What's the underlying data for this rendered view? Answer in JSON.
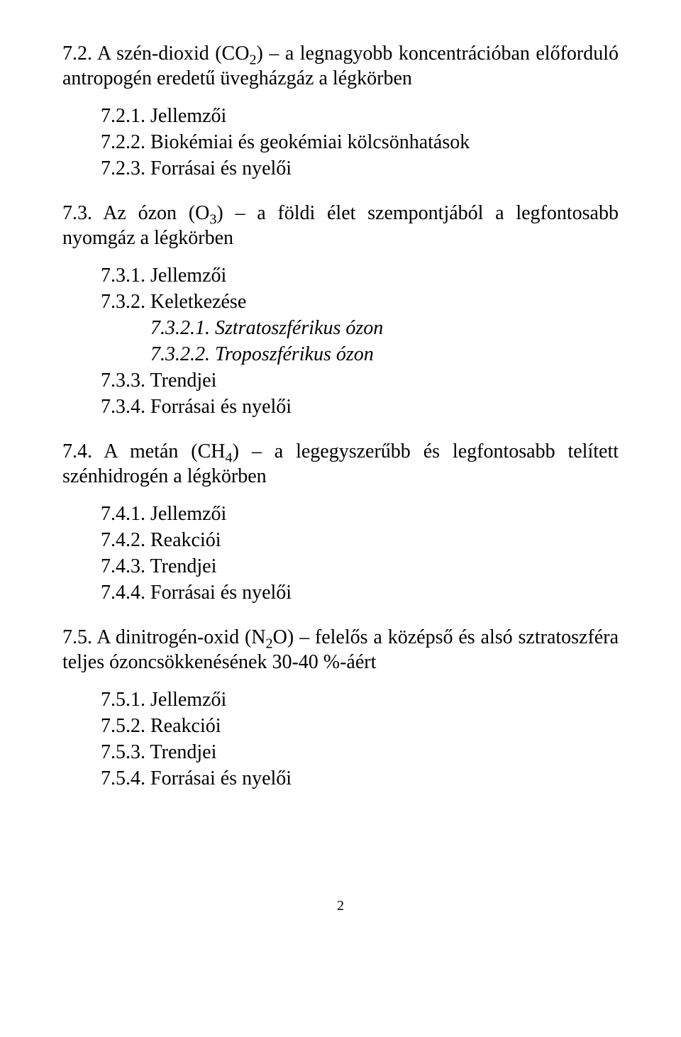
{
  "sections": [
    {
      "num": "7.2.",
      "title_html": "A szén-dioxid (CO<sub>2</sub>) – a legnagyobb koncentrációban előforduló antropogén eredetű üvegházgáz a légkörben",
      "spread_except_last": true,
      "items": [
        {
          "num": "7.2.1.",
          "text": "Jellemzői"
        },
        {
          "num": "7.2.2.",
          "text": "Biokémiai és geokémiai kölcsönhatások"
        },
        {
          "num": "7.2.3.",
          "text": "Forrásai és nyelői"
        }
      ]
    },
    {
      "num": "7.3.",
      "title_html": "Az ózon (O<sub>3</sub>) – a földi élet szempontjából a legfontosabb nyomgáz a légkörben",
      "spread_except_last": true,
      "items": [
        {
          "num": "7.3.1.",
          "text": "Jellemzői"
        },
        {
          "num": "7.3.2.",
          "text": "Keletkezése",
          "items": [
            {
              "num": "7.3.2.1.",
              "text": "Sztratoszférikus ózon"
            },
            {
              "num": "7.3.2.2.",
              "text": "Troposzférikus ózon"
            }
          ]
        },
        {
          "num": "7.3.3.",
          "text": "Trendjei"
        },
        {
          "num": "7.3.4.",
          "text": "Forrásai és nyelői"
        }
      ]
    },
    {
      "num": "7.4.",
      "title_html": "A metán (CH<sub>4</sub>) – a legegyszerűbb és legfontosabb telített szénhidrogén a légkörben",
      "spread_except_last": true,
      "items": [
        {
          "num": "7.4.1.",
          "text": "Jellemzői"
        },
        {
          "num": "7.4.2.",
          "text": "Reakciói"
        },
        {
          "num": "7.4.3.",
          "text": "Trendjei"
        },
        {
          "num": "7.4.4.",
          "text": "Forrásai és nyelői"
        }
      ]
    },
    {
      "num": "7.5.",
      "title_html": "A dinitrogén-oxid (N<sub>2</sub>O) – felelős a középső és alsó sztratoszféra teljes ózoncsökkenésének 30-40 %-áért",
      "spread_except_last": true,
      "items": [
        {
          "num": "7.5.1.",
          "text": "Jellemzői"
        },
        {
          "num": "7.5.2.",
          "text": "Reakciói"
        },
        {
          "num": "7.5.3.",
          "text": "Trendjei"
        },
        {
          "num": "7.5.4.",
          "text": "Forrásai és nyelői"
        }
      ]
    }
  ],
  "page_number": "2"
}
